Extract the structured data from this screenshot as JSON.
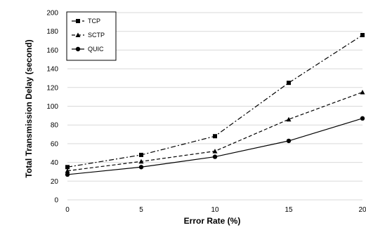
{
  "chart_data": {
    "type": "line",
    "xlabel": "Error Rate (%)",
    "ylabel": "Total Transmission Delay (second)",
    "x": [
      0,
      5,
      10,
      15,
      20
    ],
    "x_tick_labels": [
      "0",
      "5",
      "10",
      "15",
      "20"
    ],
    "ylim": [
      0,
      200
    ],
    "y_ticks": [
      0,
      20,
      40,
      60,
      80,
      100,
      120,
      140,
      160,
      180,
      200
    ],
    "grid": "horizontal",
    "legend_position": "top-left",
    "series": [
      {
        "name": "TCP",
        "values": [
          35,
          48,
          68,
          125,
          176
        ],
        "marker": "square",
        "line_style": "dash-dot",
        "color": "#000000"
      },
      {
        "name": "SCTP",
        "values": [
          31,
          41,
          52,
          86,
          115
        ],
        "marker": "triangle",
        "line_style": "dashed",
        "color": "#000000"
      },
      {
        "name": "QUIC",
        "values": [
          27,
          35,
          46,
          63,
          87
        ],
        "marker": "circle",
        "line_style": "solid",
        "color": "#000000"
      }
    ]
  }
}
